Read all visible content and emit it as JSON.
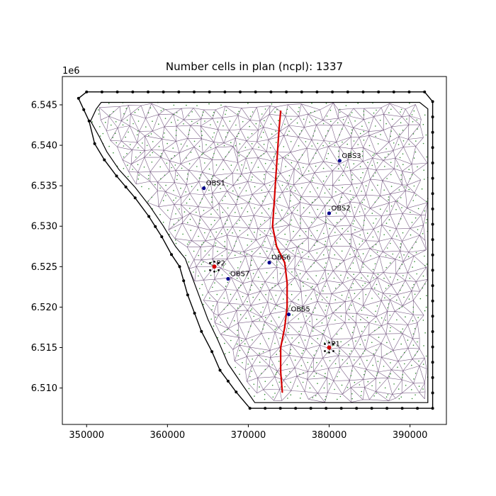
{
  "chart_data": {
    "type": "scatter",
    "title": "Number cells in plan (ncpl): 1337",
    "xlabel": "",
    "ylabel": "",
    "y_offset_label": "1e6",
    "xlim": [
      347000,
      394500
    ],
    "ylim": [
      6505500,
      6548500
    ],
    "x_ticks": [
      350000,
      360000,
      370000,
      380000,
      390000
    ],
    "x_tick_labels": [
      "350000",
      "360000",
      "370000",
      "380000",
      "390000"
    ],
    "y_ticks": [
      6510000,
      6515000,
      6520000,
      6525000,
      6530000,
      6535000,
      6540000,
      6545000
    ],
    "y_tick_labels": [
      "6.510",
      "6.515",
      "6.520",
      "6.525",
      "6.530",
      "6.535",
      "6.540",
      "6.545"
    ],
    "grid": false,
    "mesh_edge_color": "#7a5f86",
    "cell_center_color": "#2e8b2e",
    "boundary_color": "#000000",
    "river_color": "#d40000",
    "obs_color": "#00008b",
    "well_color": "#d40000",
    "cell_count": 1337,
    "domain_outer": [
      [
        349000,
        6545800
      ],
      [
        350000,
        6546600
      ],
      [
        391800,
        6546600
      ],
      [
        392800,
        6545400
      ],
      [
        392800,
        6507500
      ],
      [
        370200,
        6507500
      ],
      [
        368500,
        6509500
      ],
      [
        366500,
        6512200
      ],
      [
        365500,
        6514500
      ],
      [
        364200,
        6517000
      ],
      [
        362500,
        6521500
      ],
      [
        361500,
        6525000
      ],
      [
        360500,
        6526500
      ],
      [
        359300,
        6528700
      ],
      [
        357700,
        6531200
      ],
      [
        356000,
        6533500
      ],
      [
        353700,
        6536200
      ],
      [
        352200,
        6538200
      ],
      [
        351000,
        6540200
      ],
      [
        350300,
        6543000
      ]
    ],
    "domain_inner": [
      [
        350500,
        6543000
      ],
      [
        351200,
        6544500
      ],
      [
        351800,
        6545300
      ],
      [
        391200,
        6545300
      ],
      [
        392200,
        6544500
      ],
      [
        392200,
        6508200
      ],
      [
        370800,
        6508200
      ],
      [
        369200,
        6510500
      ],
      [
        367500,
        6513000
      ],
      [
        366200,
        6516000
      ],
      [
        365000,
        6518500
      ],
      [
        363500,
        6522500
      ],
      [
        362200,
        6526000
      ],
      [
        361000,
        6527500
      ],
      [
        359500,
        6530000
      ],
      [
        357800,
        6532500
      ],
      [
        356000,
        6534800
      ],
      [
        354000,
        6537000
      ],
      [
        352500,
        6539200
      ],
      [
        351600,
        6541000
      ]
    ],
    "river": [
      [
        374000,
        6544200
      ],
      [
        373800,
        6542000
      ],
      [
        373600,
        6539000
      ],
      [
        373400,
        6536000
      ],
      [
        373200,
        6533000
      ],
      [
        373000,
        6530000
      ],
      [
        373500,
        6527500
      ],
      [
        374500,
        6525500
      ],
      [
        374800,
        6523000
      ],
      [
        374800,
        6520000
      ],
      [
        374500,
        6517500
      ],
      [
        374000,
        6515000
      ],
      [
        374000,
        6512000
      ],
      [
        374200,
        6509500
      ]
    ],
    "observations": [
      {
        "name": "OBS1",
        "x": 364500,
        "y": 6534700
      },
      {
        "name": "OBS3",
        "x": 381300,
        "y": 6538100
      },
      {
        "name": "OBS2",
        "x": 380000,
        "y": 6531600
      },
      {
        "name": "OBS6",
        "x": 372600,
        "y": 6525500
      },
      {
        "name": "OBS7",
        "x": 367500,
        "y": 6523500
      },
      {
        "name": "OBS5",
        "x": 375000,
        "y": 6519100
      }
    ],
    "wells": [
      {
        "name": "P2",
        "x": 365800,
        "y": 6525000
      },
      {
        "name": "P1",
        "x": 380000,
        "y": 6515000
      }
    ]
  }
}
